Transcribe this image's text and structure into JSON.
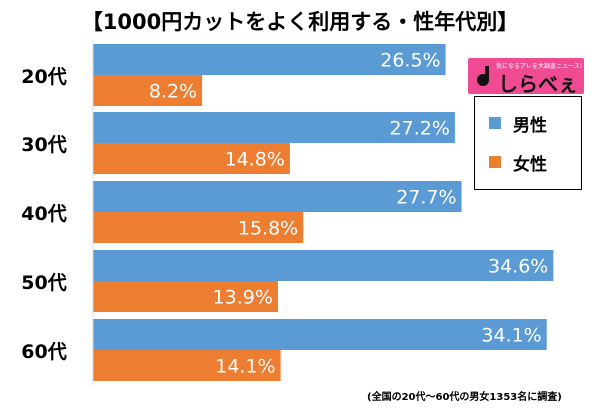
{
  "title": "【1000円カットをよく利用する・性年代別】",
  "note": "(全国の20代～60代の男女1353名に調査)",
  "logo": {
    "name": "しらべぇ",
    "tagline": "気になるアレを大調査ニュース!"
  },
  "chart_data": {
    "type": "bar",
    "orientation": "horizontal",
    "categories": [
      "20代",
      "30代",
      "40代",
      "50代",
      "60代"
    ],
    "series": [
      {
        "name": "男性",
        "color": "#5b9bd5",
        "values": [
          26.5,
          27.2,
          27.7,
          34.6,
          34.1
        ]
      },
      {
        "name": "女性",
        "color": "#ed7d31",
        "values": [
          8.2,
          14.8,
          15.8,
          13.9,
          14.1
        ]
      }
    ],
    "value_suffix": "%",
    "data_labels": true,
    "legend": "right",
    "grid": false
  }
}
